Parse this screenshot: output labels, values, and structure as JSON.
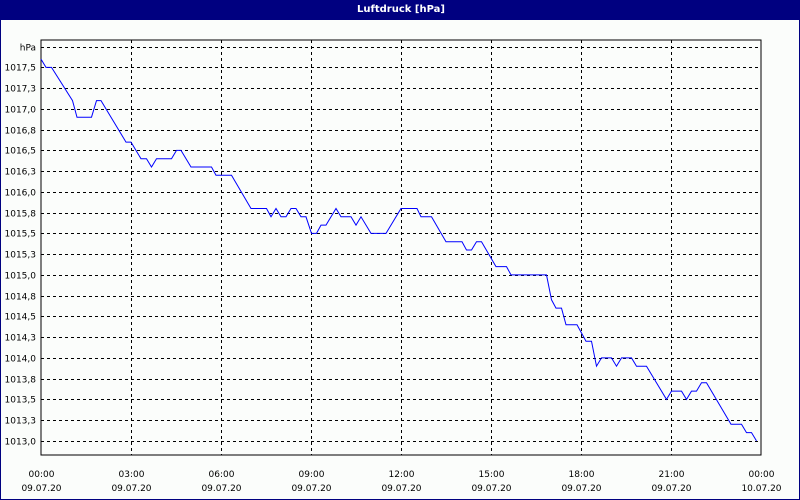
{
  "window": {
    "title": "Luftdruck [hPa]"
  },
  "chart_data": {
    "type": "line",
    "title": "Luftdruck [hPa]",
    "ylabel": "hPa",
    "xlabel": "",
    "ylim": [
      1012.83,
      1017.83
    ],
    "xlim": [
      "09.07.20 00:00",
      "10.07.20 00:00"
    ],
    "grid": true,
    "grid_style": "dashed",
    "line_color": "#0000ff",
    "y_ticks": [
      {
        "value": 1017.75,
        "label": "hPa"
      },
      {
        "value": 1017.5,
        "label": "1017,5"
      },
      {
        "value": 1017.25,
        "label": "1017,3"
      },
      {
        "value": 1017.0,
        "label": "1017,0"
      },
      {
        "value": 1016.75,
        "label": "1016,8"
      },
      {
        "value": 1016.5,
        "label": "1016,5"
      },
      {
        "value": 1016.25,
        "label": "1016,3"
      },
      {
        "value": 1016.0,
        "label": "1016,0"
      },
      {
        "value": 1015.75,
        "label": "1015,8"
      },
      {
        "value": 1015.5,
        "label": "1015,5"
      },
      {
        "value": 1015.25,
        "label": "1015,3"
      },
      {
        "value": 1015.0,
        "label": "1015,0"
      },
      {
        "value": 1014.75,
        "label": "1014,8"
      },
      {
        "value": 1014.5,
        "label": "1014,5"
      },
      {
        "value": 1014.25,
        "label": "1014,3"
      },
      {
        "value": 1014.0,
        "label": "1014,0"
      },
      {
        "value": 1013.75,
        "label": "1013,8"
      },
      {
        "value": 1013.5,
        "label": "1013,5"
      },
      {
        "value": 1013.25,
        "label": "1013,3"
      },
      {
        "value": 1013.0,
        "label": "1013,0"
      }
    ],
    "x_ticks": [
      {
        "time": "00:00",
        "date": "09.07.20"
      },
      {
        "time": "03:00",
        "date": "09.07.20"
      },
      {
        "time": "06:00",
        "date": "09.07.20"
      },
      {
        "time": "09:00",
        "date": "09.07.20"
      },
      {
        "time": "12:00",
        "date": "09.07.20"
      },
      {
        "time": "15:00",
        "date": "09.07.20"
      },
      {
        "time": "18:00",
        "date": "09.07.20"
      },
      {
        "time": "21:00",
        "date": "09.07.20"
      },
      {
        "time": "00:00",
        "date": "10.07.20"
      }
    ],
    "series": [
      {
        "x": [
          "00:00",
          "00:10",
          "00:21",
          "01:03",
          "01:12",
          "01:41",
          "01:51",
          "02:00",
          "02:50",
          "03:00",
          "03:20",
          "03:31",
          "03:41",
          "03:51",
          "04:21",
          "04:31",
          "04:40",
          "05:00",
          "05:41",
          "05:50",
          "06:21",
          "07:00",
          "07:31",
          "07:40",
          "07:50",
          "08:00",
          "08:10",
          "08:20",
          "08:30",
          "08:40",
          "08:50",
          "09:01",
          "09:11",
          "09:20",
          "09:30",
          "09:50",
          "10:00",
          "10:20",
          "10:30",
          "10:40",
          "11:00",
          "11:30",
          "12:00",
          "12:32",
          "12:40",
          "13:01",
          "13:30",
          "14:02",
          "14:11",
          "14:21",
          "14:31",
          "14:41",
          "15:10",
          "15:31",
          "15:40",
          "16:51",
          "17:01",
          "17:10",
          "17:21",
          "17:30",
          "17:52",
          "18:10",
          "18:21",
          "18:31",
          "18:41",
          "19:01",
          "19:11",
          "19:21",
          "19:41",
          "19:51",
          "20:11",
          "20:51",
          "21:01",
          "21:21",
          "21:31",
          "21:41",
          "21:51",
          "22:01",
          "22:11",
          "23:00",
          "23:21",
          "23:31",
          "23:41",
          "23:51"
        ],
        "y": [
          1017.6,
          1017.5,
          1017.5,
          1017.1,
          1016.9,
          1016.9,
          1017.1,
          1017.1,
          1016.6,
          1016.6,
          1016.4,
          1016.4,
          1016.3,
          1016.4,
          1016.4,
          1016.5,
          1016.5,
          1016.3,
          1016.3,
          1016.2,
          1016.2,
          1015.8,
          1015.8,
          1015.7,
          1015.8,
          1015.7,
          1015.7,
          1015.8,
          1015.8,
          1015.7,
          1015.7,
          1015.5,
          1015.5,
          1015.6,
          1015.6,
          1015.8,
          1015.7,
          1015.7,
          1015.6,
          1015.7,
          1015.5,
          1015.5,
          1015.8,
          1015.8,
          1015.7,
          1015.7,
          1015.4,
          1015.4,
          1015.3,
          1015.3,
          1015.4,
          1015.4,
          1015.1,
          1015.1,
          1015.0,
          1015.0,
          1014.7,
          1014.6,
          1014.6,
          1014.4,
          1014.4,
          1014.2,
          1014.2,
          1013.9,
          1014.0,
          1014.0,
          1013.9,
          1014.0,
          1014.0,
          1013.9,
          1013.9,
          1013.5,
          1013.6,
          1013.6,
          1013.5,
          1013.6,
          1013.6,
          1013.7,
          1013.7,
          1013.2,
          1013.2,
          1013.1,
          1013.1,
          1013.0
        ]
      }
    ]
  }
}
